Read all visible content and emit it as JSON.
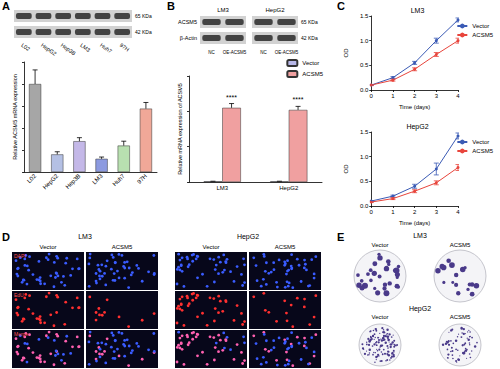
{
  "panels": [
    "A",
    "B",
    "C",
    "D",
    "E"
  ],
  "blots": [
    {
      "lanes": [
        "L02",
        "HepG2",
        "Hep3B",
        "LM3",
        "Huh7",
        "97H"
      ],
      "sizes": [
        "65 KDa",
        "42 KDa"
      ]
    },
    {
      "rows": [
        "ACSM5",
        "β-Actin"
      ],
      "groups": [
        "LM3",
        "HepG2"
      ],
      "lanes": [
        "NC",
        "OE-ACSM5"
      ],
      "sizes": [
        "65 KDa",
        "42 KDa"
      ]
    }
  ],
  "chart_data": [
    {
      "type": "bar",
      "categories": [
        "L02",
        "HepG2",
        "Hep3B",
        "LM3",
        "Huh7",
        "97H"
      ],
      "values": [
        1.0,
        0.2,
        0.35,
        0.15,
        0.3,
        0.72
      ],
      "errors": [
        0.16,
        0.03,
        0.04,
        0.02,
        0.05,
        0.07
      ],
      "colors": [
        "#a6a6a6",
        "#b4c0e4",
        "#c4b8e8",
        "#8c9ae0",
        "#b8e0b0",
        "#f0a898"
      ],
      "y_label": "Relative ACSM5 mRNA expression",
      "ylim": [
        0,
        1.25
      ],
      "yticks": [
        0,
        0.25,
        0.5,
        0.75,
        1,
        1.25
      ],
      "tick_labels": "x",
      "grid": false
    },
    {
      "type": "bar",
      "categories": [
        "LM3",
        "HepG2"
      ],
      "series": [
        {
          "name": "Vector",
          "color": "#b8b8e8",
          "values": [
            1,
            1
          ],
          "errors": [
            0.1,
            0.1
          ]
        },
        {
          "name": "ACSM5",
          "color": "#f0a0a0",
          "values": [
            105,
            102
          ],
          "errors": [
            6,
            5
          ]
        }
      ],
      "annotations": [
        "****",
        "****"
      ],
      "y_label": "Relative mRNA expression of ACSM5",
      "ylim": [
        0,
        150
      ],
      "yticks": [
        0,
        50,
        100,
        150
      ],
      "tick_labels": "x",
      "legend": "top-right",
      "grid": false
    },
    {
      "type": "line",
      "title": "LM3",
      "x": [
        0,
        1,
        2,
        3,
        4
      ],
      "series": [
        {
          "name": "Vector",
          "color": "#3b5bb5",
          "values": [
            0.1,
            0.25,
            0.55,
            1.0,
            1.42
          ],
          "errors": [
            0.01,
            0.02,
            0.03,
            0.05,
            0.04
          ]
        },
        {
          "name": "ACSM5",
          "color": "#e8453c",
          "values": [
            0.1,
            0.2,
            0.42,
            0.72,
            1.0
          ],
          "errors": [
            0.01,
            0.02,
            0.03,
            0.04,
            0.05
          ]
        }
      ],
      "x_label": "Time (days)",
      "y_label": "OD",
      "xlim": [
        0,
        4
      ],
      "xticks": [
        0,
        1,
        2,
        3,
        4
      ],
      "ylim": [
        0,
        1.5
      ],
      "yticks": [
        {
          "value": 0,
          "label": "0.0"
        },
        0.5,
        {
          "value": 1,
          "label": "1.0"
        },
        1.5
      ],
      "legend": "top-right",
      "marker": "circle",
      "grid": false
    },
    {
      "type": "line",
      "title": "HepG2",
      "x": [
        0,
        1,
        2,
        3,
        4
      ],
      "series": [
        {
          "name": "Vector",
          "color": "#3b5bb5",
          "values": [
            0.1,
            0.2,
            0.4,
            0.75,
            1.42
          ],
          "errors": [
            0.01,
            0.02,
            0.04,
            0.12,
            0.06
          ]
        },
        {
          "name": "ACSM5",
          "color": "#e8453c",
          "values": [
            0.08,
            0.15,
            0.3,
            0.47,
            0.78
          ],
          "errors": [
            0.01,
            0.02,
            0.03,
            0.04,
            0.06
          ]
        }
      ],
      "x_label": "Time (days)",
      "y_label": "OD",
      "xlim": [
        0,
        4
      ],
      "xticks": [
        0,
        1,
        2,
        3,
        4
      ],
      "ylim": [
        0,
        1.5
      ],
      "yticks": [
        {
          "value": 0,
          "label": "0.0"
        },
        0.5,
        {
          "value": 1,
          "label": "1.0"
        },
        1.5
      ],
      "legend": "top-right",
      "marker": "circle",
      "grid": false
    }
  ],
  "images": {
    "groups": [
      "LM3",
      "HepG2"
    ],
    "columns": [
      "Vector",
      "ACSM5"
    ],
    "rows": [
      "DAPI",
      "EdU",
      "Merge"
    ]
  },
  "colonies": {
    "groups": [
      "LM3",
      "HepG2"
    ],
    "columns": [
      "Vector",
      "ACSM5"
    ]
  }
}
